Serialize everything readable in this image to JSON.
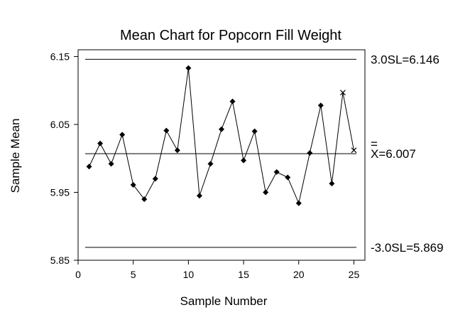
{
  "chart_data": {
    "type": "line",
    "title": "Mean Chart for Popcorn Fill Weight",
    "xlabel": "Sample Number",
    "ylabel": "Sample Mean",
    "xlim": [
      0,
      26
    ],
    "ylim": [
      5.85,
      6.16
    ],
    "x_ticks": [
      "0",
      "5",
      "10",
      "15",
      "20",
      "25"
    ],
    "x_tick_values": [
      0,
      5,
      10,
      15,
      20,
      25
    ],
    "y_ticks": [
      "5.85",
      "5.95",
      "6.05",
      "6.15"
    ],
    "y_tick_values": [
      5.85,
      5.95,
      6.05,
      6.15
    ],
    "grid": false,
    "x": [
      1,
      2,
      3,
      4,
      5,
      6,
      7,
      8,
      9,
      10,
      11,
      12,
      13,
      14,
      15,
      16,
      17,
      18,
      19,
      20,
      21,
      22,
      23,
      24,
      25
    ],
    "values": [
      5.988,
      6.022,
      5.992,
      6.035,
      5.961,
      5.94,
      5.97,
      6.041,
      6.012,
      6.133,
      5.945,
      5.992,
      6.043,
      6.084,
      5.997,
      6.04,
      5.95,
      5.98,
      5.972,
      5.934,
      6.008,
      6.078,
      5.963,
      6.097,
      6.012
    ],
    "flagged_points": [
      24,
      25
    ],
    "control_lines": [
      {
        "label": "3.0SL=6.146",
        "value": 6.146
      },
      {
        "label": "X=6.007",
        "value": 6.007,
        "overbar": "="
      },
      {
        "label": "-3.0SL=5.869",
        "value": 5.869
      }
    ]
  }
}
